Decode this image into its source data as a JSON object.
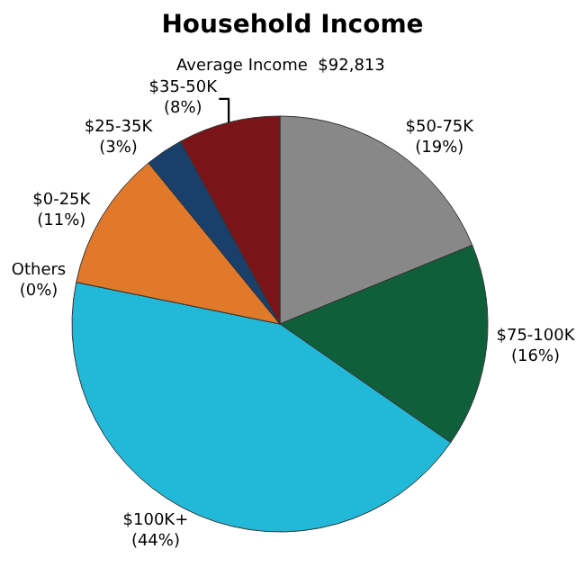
{
  "chart_data": {
    "type": "pie",
    "title": "Household Income",
    "subtitle": "Average Income  $92,813",
    "categories": [
      "$50-75K",
      "$75-100K",
      "$100K+",
      "Others",
      "$0-25K",
      "$25-35K",
      "$35-50K"
    ],
    "values": [
      19,
      16,
      44,
      0,
      11,
      3,
      8
    ],
    "value_labels": [
      "(19%)",
      "(16%)",
      "(44%)",
      "(0%)",
      "(11%)",
      "(3%)",
      "(8%)"
    ],
    "colors": [
      "#888888",
      "#0f5f3a",
      "#22b8d8",
      "#c0c0c0",
      "#e07a2a",
      "#1a3f6a",
      "#7a1418"
    ],
    "legend": false
  }
}
